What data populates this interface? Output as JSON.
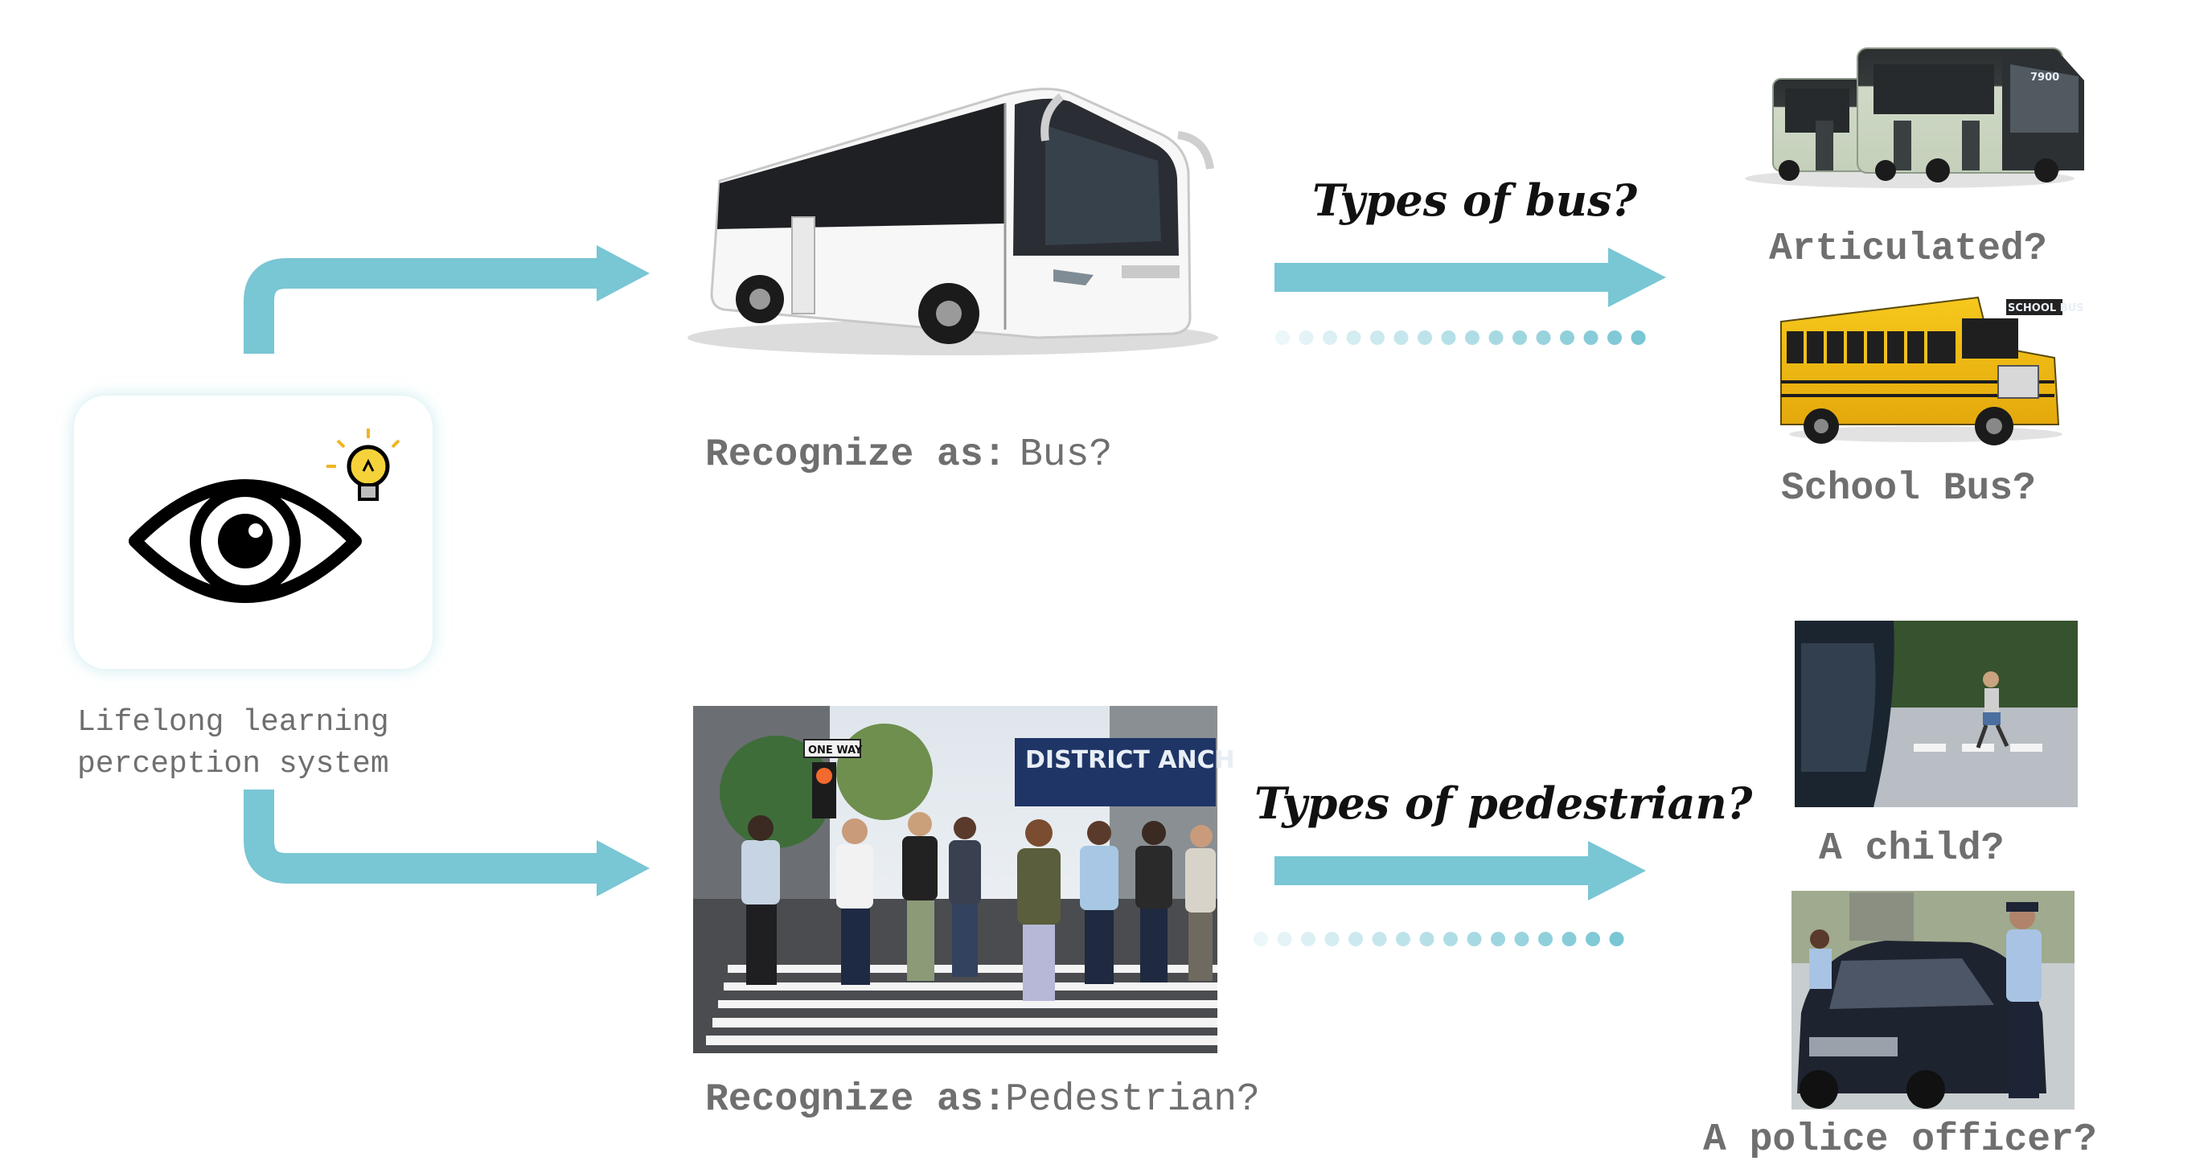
{
  "system": {
    "label_line1": "Lifelong learning",
    "label_line2": "perception system",
    "icon": "eye-icon",
    "badge_icon": "lightbulb-icon"
  },
  "bus_branch": {
    "recognize_prefix": "Recognize as:",
    "recognize_value": " Bus?",
    "question": "Types of bus?",
    "subtypes": [
      "Articulated?",
      "School Bus?"
    ],
    "school_bus_sign": "SCHOOL BUS",
    "electric_bus_number": "7900"
  },
  "pedestrian_branch": {
    "recognize_prefix": "Recognize as:",
    "recognize_value": "Pedestrian?",
    "question": "Types of pedestrian?",
    "subtypes": [
      "A child?",
      "A police officer?"
    ],
    "storefront_sign": "DISTRICT ANCH",
    "street_sign": "ONE WAY"
  },
  "colors": {
    "arrow": "#79c6d4",
    "label_gray": "#6f6f6f",
    "question_black": "#111111"
  }
}
